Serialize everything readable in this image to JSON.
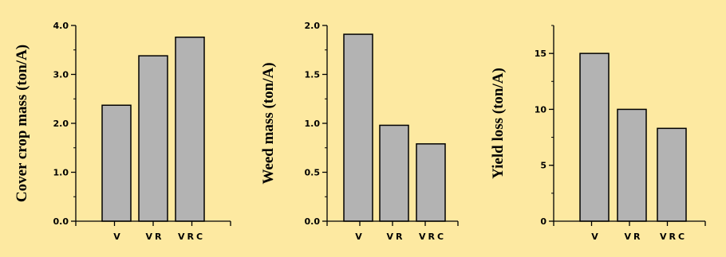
{
  "figure": {
    "background": "#fde9a1",
    "bar_fill": "#b3b3b3",
    "bar_stroke": "#000000"
  },
  "chart_data": [
    {
      "type": "bar",
      "categories": [
        "V",
        "VR",
        "VRC"
      ],
      "values": [
        2.37,
        3.38,
        3.76
      ],
      "ylabel": "Cover crop mass (ton/A)",
      "ylim": [
        0,
        4
      ],
      "yticks": [
        0,
        1,
        2,
        3,
        4
      ],
      "yticklabels": [
        "0.0",
        "1.0",
        "2.0",
        "3.0",
        "4.0"
      ],
      "minor_step": 0.5,
      "grid": false
    },
    {
      "type": "bar",
      "categories": [
        "V",
        "VR",
        "VRC"
      ],
      "values": [
        1.91,
        0.98,
        0.79
      ],
      "ylabel": "Weed mass (ton/A)",
      "ylim": [
        0,
        2
      ],
      "yticks": [
        0,
        0.5,
        1,
        1.5,
        2
      ],
      "yticklabels": [
        "0.0",
        "0.5",
        "1.0",
        "1.5",
        "2.0"
      ],
      "minor_step": 0.25,
      "grid": false
    },
    {
      "type": "bar",
      "categories": [
        "V",
        "VR",
        "VRC"
      ],
      "values": [
        15.0,
        10.0,
        8.3
      ],
      "ylabel": "Yield loss (ton/A)",
      "ylim": [
        0,
        17.5
      ],
      "yticks": [
        0,
        5,
        10,
        15
      ],
      "yticklabels": [
        "0",
        "5",
        "10",
        "15"
      ],
      "minor_step": 2.5,
      "grid": false
    }
  ]
}
